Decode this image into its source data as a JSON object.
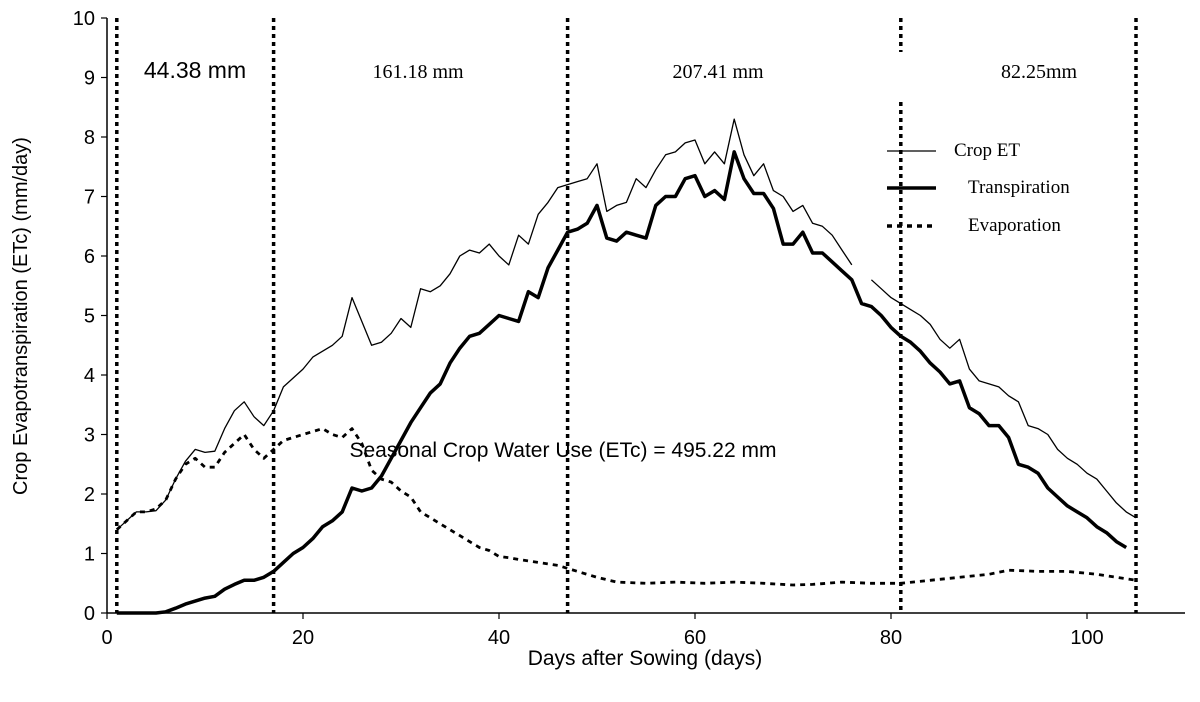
{
  "chart_data": {
    "type": "line",
    "xlabel": "Days after Sowing (days)",
    "ylabel": "Crop Evapotranspiration (ETc) (mm/day)",
    "xlim": [
      0,
      110
    ],
    "ylim": [
      0,
      10
    ],
    "x_ticks": [
      0,
      20,
      40,
      60,
      80,
      100
    ],
    "y_ticks": [
      0,
      1,
      2,
      3,
      4,
      5,
      6,
      7,
      8,
      9,
      10
    ],
    "grid": false,
    "legend_position": "upper-right",
    "annotation": "Seasonal Crop Water Use (ETc) = 495.22 mm",
    "stage_boundaries": [
      1,
      17,
      47,
      81,
      105
    ],
    "stage_totals": [
      "44.38 mm",
      "161.18 mm",
      "207.41 mm",
      "82.25mm"
    ],
    "series": [
      {
        "name": "Crop ET",
        "style": "thin",
        "color": "#000000",
        "points": [
          [
            1,
            1.4
          ],
          [
            2,
            1.55
          ],
          [
            3,
            1.7
          ],
          [
            4,
            1.7
          ],
          [
            5,
            1.72
          ],
          [
            6,
            1.9
          ],
          [
            7,
            2.25
          ],
          [
            8,
            2.55
          ],
          [
            9,
            2.75
          ],
          [
            10,
            2.7
          ],
          [
            11,
            2.72
          ],
          [
            12,
            3.1
          ],
          [
            13,
            3.4
          ],
          [
            14,
            3.55
          ],
          [
            15,
            3.3
          ],
          [
            16,
            3.15
          ],
          [
            17,
            3.4
          ],
          [
            18,
            3.8
          ],
          [
            19,
            3.95
          ],
          [
            20,
            4.1
          ],
          [
            21,
            4.3
          ],
          [
            22,
            4.4
          ],
          [
            23,
            4.5
          ],
          [
            24,
            4.65
          ],
          [
            25,
            5.3
          ],
          [
            26,
            4.9
          ],
          [
            27,
            4.5
          ],
          [
            28,
            4.55
          ],
          [
            29,
            4.7
          ],
          [
            30,
            4.95
          ],
          [
            31,
            4.8
          ],
          [
            32,
            5.45
          ],
          [
            33,
            5.4
          ],
          [
            34,
            5.5
          ],
          [
            35,
            5.7
          ],
          [
            36,
            6.0
          ],
          [
            37,
            6.1
          ],
          [
            38,
            6.05
          ],
          [
            39,
            6.2
          ],
          [
            40,
            6.0
          ],
          [
            41,
            5.85
          ],
          [
            42,
            6.35
          ],
          [
            43,
            6.2
          ],
          [
            44,
            6.7
          ],
          [
            45,
            6.9
          ],
          [
            46,
            7.15
          ],
          [
            47,
            7.2
          ],
          [
            48,
            7.25
          ],
          [
            49,
            7.3
          ],
          [
            50,
            7.55
          ],
          [
            51,
            6.75
          ],
          [
            52,
            6.85
          ],
          [
            53,
            6.9
          ],
          [
            54,
            7.3
          ],
          [
            55,
            7.15
          ],
          [
            56,
            7.45
          ],
          [
            57,
            7.7
          ],
          [
            58,
            7.75
          ],
          [
            59,
            7.9
          ],
          [
            60,
            7.95
          ],
          [
            61,
            7.55
          ],
          [
            62,
            7.75
          ],
          [
            63,
            7.55
          ],
          [
            64,
            8.3
          ],
          [
            65,
            7.7
          ],
          [
            66,
            7.35
          ],
          [
            67,
            7.55
          ],
          [
            68,
            7.1
          ],
          [
            69,
            7.0
          ],
          [
            70,
            6.75
          ],
          [
            71,
            6.85
          ],
          [
            72,
            6.55
          ],
          [
            73,
            6.5
          ],
          [
            74,
            6.35
          ],
          [
            75,
            6.1
          ],
          [
            76,
            5.85
          ],
          [
            78,
            5.6
          ],
          [
            79,
            5.45
          ],
          [
            80,
            5.3
          ],
          [
            81,
            5.2
          ],
          [
            82,
            5.1
          ],
          [
            83,
            5.0
          ],
          [
            84,
            4.85
          ],
          [
            85,
            4.6
          ],
          [
            86,
            4.45
          ],
          [
            87,
            4.6
          ],
          [
            88,
            4.1
          ],
          [
            89,
            3.9
          ],
          [
            90,
            3.85
          ],
          [
            91,
            3.8
          ],
          [
            92,
            3.65
          ],
          [
            93,
            3.55
          ],
          [
            94,
            3.15
          ],
          [
            95,
            3.1
          ],
          [
            96,
            3.0
          ],
          [
            97,
            2.75
          ],
          [
            98,
            2.6
          ],
          [
            99,
            2.5
          ],
          [
            100,
            2.35
          ],
          [
            101,
            2.25
          ],
          [
            102,
            2.05
          ],
          [
            103,
            1.85
          ],
          [
            104,
            1.7
          ],
          [
            105,
            1.6
          ]
        ]
      },
      {
        "name": "Transpiration",
        "style": "thick",
        "color": "#000000",
        "points": [
          [
            1,
            0.0
          ],
          [
            5,
            0.0
          ],
          [
            6,
            0.02
          ],
          [
            7,
            0.08
          ],
          [
            8,
            0.15
          ],
          [
            9,
            0.2
          ],
          [
            10,
            0.25
          ],
          [
            11,
            0.28
          ],
          [
            12,
            0.4
          ],
          [
            13,
            0.48
          ],
          [
            14,
            0.55
          ],
          [
            15,
            0.55
          ],
          [
            16,
            0.6
          ],
          [
            17,
            0.7
          ],
          [
            18,
            0.85
          ],
          [
            19,
            1.0
          ],
          [
            20,
            1.1
          ],
          [
            21,
            1.25
          ],
          [
            22,
            1.45
          ],
          [
            23,
            1.55
          ],
          [
            24,
            1.7
          ],
          [
            25,
            2.1
          ],
          [
            26,
            2.05
          ],
          [
            27,
            2.1
          ],
          [
            28,
            2.3
          ],
          [
            29,
            2.6
          ],
          [
            30,
            2.9
          ],
          [
            31,
            3.2
          ],
          [
            32,
            3.45
          ],
          [
            33,
            3.7
          ],
          [
            34,
            3.85
          ],
          [
            35,
            4.2
          ],
          [
            36,
            4.45
          ],
          [
            37,
            4.65
          ],
          [
            38,
            4.7
          ],
          [
            39,
            4.85
          ],
          [
            40,
            5.0
          ],
          [
            41,
            4.95
          ],
          [
            42,
            4.9
          ],
          [
            43,
            5.4
          ],
          [
            44,
            5.3
          ],
          [
            45,
            5.8
          ],
          [
            46,
            6.1
          ],
          [
            47,
            6.4
          ],
          [
            48,
            6.45
          ],
          [
            49,
            6.55
          ],
          [
            50,
            6.85
          ],
          [
            51,
            6.3
          ],
          [
            52,
            6.25
          ],
          [
            53,
            6.4
          ],
          [
            54,
            6.35
          ],
          [
            55,
            6.3
          ],
          [
            56,
            6.85
          ],
          [
            57,
            7.0
          ],
          [
            58,
            7.0
          ],
          [
            59,
            7.3
          ],
          [
            60,
            7.35
          ],
          [
            61,
            7.0
          ],
          [
            62,
            7.1
          ],
          [
            63,
            6.95
          ],
          [
            64,
            7.75
          ],
          [
            65,
            7.3
          ],
          [
            66,
            7.05
          ],
          [
            67,
            7.05
          ],
          [
            68,
            6.8
          ],
          [
            69,
            6.2
          ],
          [
            70,
            6.2
          ],
          [
            71,
            6.4
          ],
          [
            72,
            6.05
          ],
          [
            73,
            6.05
          ],
          [
            74,
            5.9
          ],
          [
            75,
            5.75
          ],
          [
            76,
            5.6
          ],
          [
            77,
            5.2
          ],
          [
            78,
            5.15
          ],
          [
            79,
            5.0
          ],
          [
            80,
            4.8
          ],
          [
            81,
            4.65
          ],
          [
            82,
            4.55
          ],
          [
            83,
            4.4
          ],
          [
            84,
            4.2
          ],
          [
            85,
            4.05
          ],
          [
            86,
            3.85
          ],
          [
            87,
            3.9
          ],
          [
            88,
            3.45
          ],
          [
            89,
            3.35
          ],
          [
            90,
            3.15
          ],
          [
            91,
            3.15
          ],
          [
            92,
            2.95
          ],
          [
            93,
            2.5
          ],
          [
            94,
            2.45
          ],
          [
            95,
            2.35
          ],
          [
            96,
            2.1
          ],
          [
            97,
            1.95
          ],
          [
            98,
            1.8
          ],
          [
            99,
            1.7
          ],
          [
            100,
            1.6
          ],
          [
            101,
            1.45
          ],
          [
            102,
            1.35
          ],
          [
            103,
            1.2
          ],
          [
            104,
            1.1
          ]
        ]
      },
      {
        "name": "Evaporation",
        "style": "dotted",
        "color": "#000000",
        "points": [
          [
            1,
            1.4
          ],
          [
            2,
            1.55
          ],
          [
            3,
            1.7
          ],
          [
            4,
            1.7
          ],
          [
            5,
            1.75
          ],
          [
            6,
            1.9
          ],
          [
            7,
            2.25
          ],
          [
            8,
            2.5
          ],
          [
            9,
            2.6
          ],
          [
            10,
            2.45
          ],
          [
            11,
            2.45
          ],
          [
            12,
            2.7
          ],
          [
            13,
            2.85
          ],
          [
            14,
            3.0
          ],
          [
            15,
            2.75
          ],
          [
            16,
            2.6
          ],
          [
            17,
            2.75
          ],
          [
            18,
            2.9
          ],
          [
            19,
            2.95
          ],
          [
            20,
            3.0
          ],
          [
            21,
            3.05
          ],
          [
            22,
            3.1
          ],
          [
            23,
            3.0
          ],
          [
            24,
            2.95
          ],
          [
            25,
            3.1
          ],
          [
            26,
            2.85
          ],
          [
            27,
            2.4
          ],
          [
            28,
            2.25
          ],
          [
            29,
            2.2
          ],
          [
            30,
            2.05
          ],
          [
            31,
            1.95
          ],
          [
            32,
            1.7
          ],
          [
            33,
            1.6
          ],
          [
            34,
            1.5
          ],
          [
            35,
            1.4
          ],
          [
            36,
            1.3
          ],
          [
            37,
            1.2
          ],
          [
            38,
            1.1
          ],
          [
            39,
            1.05
          ],
          [
            40,
            0.95
          ],
          [
            41,
            0.93
          ],
          [
            42,
            0.9
          ],
          [
            44,
            0.85
          ],
          [
            46,
            0.8
          ],
          [
            48,
            0.7
          ],
          [
            50,
            0.6
          ],
          [
            52,
            0.52
          ],
          [
            55,
            0.5
          ],
          [
            58,
            0.52
          ],
          [
            61,
            0.5
          ],
          [
            64,
            0.52
          ],
          [
            67,
            0.5
          ],
          [
            70,
            0.47
          ],
          [
            72,
            0.48
          ],
          [
            75,
            0.52
          ],
          [
            78,
            0.5
          ],
          [
            81,
            0.5
          ],
          [
            84,
            0.55
          ],
          [
            87,
            0.6
          ],
          [
            90,
            0.65
          ],
          [
            92,
            0.72
          ],
          [
            95,
            0.7
          ],
          [
            98,
            0.7
          ],
          [
            101,
            0.65
          ],
          [
            103,
            0.6
          ],
          [
            105,
            0.55
          ]
        ]
      }
    ]
  }
}
